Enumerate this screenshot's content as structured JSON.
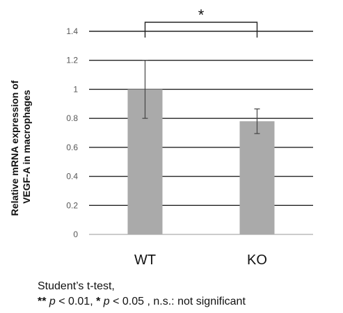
{
  "chart_data": {
    "type": "bar",
    "categories": [
      "WT",
      "KO"
    ],
    "values": [
      1.0,
      0.78
    ],
    "errors": [
      0.2,
      0.085
    ],
    "ylabel": "Relative mRNA expression of VEGF-A in macrophages",
    "ylabel_lines": [
      "Relative mRNA expression of",
      "VEGF-A in macrophages"
    ],
    "ylim": [
      0,
      1.4
    ],
    "yticks": [
      "0",
      "0.2",
      "0.4",
      "0.6",
      "0.8",
      "1",
      "1.2",
      "1.4"
    ],
    "grid": true,
    "bar_color": "#aaaaaa",
    "significance": {
      "between": [
        "WT",
        "KO"
      ],
      "label": "*"
    }
  },
  "footnote": {
    "line1": "Student’s t-test,",
    "stars2": "**",
    "p1": "p",
    "cmp1": " <  0.01,  ",
    "stars1": "*",
    "p2": "p",
    "cmp2": " <  0.05 , n.s.: not significant"
  }
}
